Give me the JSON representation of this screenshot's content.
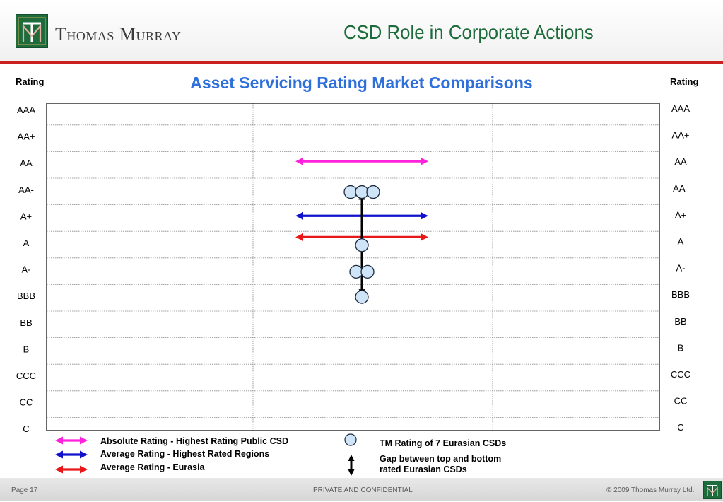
{
  "header": {
    "brand_name": "Thomas Murray",
    "logo_letters": "TM",
    "slide_title": "CSD Role in Corporate Actions"
  },
  "colors": {
    "brand_green": "#1e6b3b",
    "header_rule": "#cc1f1f",
    "chart_title": "#2f6fdc",
    "absolute_arrow": "#ff22dd",
    "average_regions_arrow": "#1212cc",
    "average_eurasia_arrow": "#e81818",
    "circle_fill": "#cfe4f7",
    "circle_stroke": "#1a2a40"
  },
  "chart_data": {
    "type": "scatter",
    "title": "Asset Servicing Rating Market Comparisons",
    "y_axis_label_left": "Rating",
    "y_axis_label_right": "Rating",
    "y_categories": [
      "AAA",
      "AA+",
      "AA",
      "AA-",
      "A+",
      "A",
      "A-",
      "BBB",
      "BB",
      "B",
      "CCC",
      "CC",
      "C"
    ],
    "y_categories_right": [
      "AAA",
      "AA+",
      "AA",
      "AA-",
      "A+",
      "A",
      "A-",
      "BBB",
      "BB",
      "B",
      "CCC",
      "CC",
      "C"
    ],
    "grid": true,
    "horizontal_markers": [
      {
        "name": "Absolute Rating -  Highest Rating Public CSD",
        "rating_index": 2.0,
        "color": "#ff22dd"
      },
      {
        "name": "Average Rating - Highest Rated Regions",
        "rating_index": 4.05,
        "color": "#1212cc"
      },
      {
        "name": "Average Rating - Eurasia",
        "rating_index": 4.85,
        "color": "#e81818"
      }
    ],
    "points": {
      "name": "TM Rating of 7 Eurasian CSDs",
      "ratings": [
        "AA-",
        "AA-",
        "AA-",
        "A",
        "A-",
        "A-",
        "BBB"
      ],
      "rating_index": [
        3.1,
        3.1,
        3.1,
        5.1,
        6.1,
        6.1,
        7.05
      ],
      "offset": [
        -1,
        0,
        1,
        0,
        -0.5,
        0.5,
        0
      ]
    },
    "gap_arrow": {
      "name": "Gap between top and bottom rated Eurasian CSDs",
      "from_index": 3.1,
      "to_index": 7.05
    }
  },
  "legend": {
    "absolute": "Absolute Rating -  Highest Rating Public CSD",
    "avg_regions": "Average Rating - Highest Rated Regions",
    "avg_eurasia": "Average Rating - Eurasia",
    "tm_rating": "TM Rating of 7 Eurasian CSDs",
    "gap_line1": "Gap between top and bottom",
    "gap_line2": "rated Eurasian CSDs"
  },
  "footer": {
    "page": "Page 17",
    "confidential": "PRIVATE AND CONFIDENTIAL",
    "copyright": "©  2009 Thomas Murray Ltd."
  }
}
